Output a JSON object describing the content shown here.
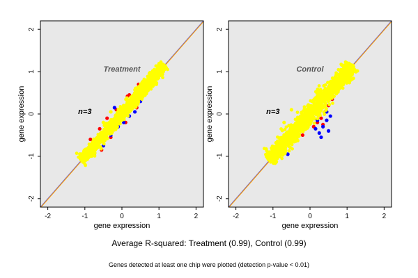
{
  "figure": {
    "caption": "Average R-squared: Treatment (0.99), Control (0.99)",
    "note": "Genes detected at least one chip were plotted (detection p-value < 0.01)"
  },
  "colors": {
    "background": "#e8e8e8",
    "points_primary": "#ffff00",
    "points_red": "#ff0000",
    "points_blue": "#0000ff",
    "identity_line": "#ffa500",
    "identity_line_2": "#6a5acd"
  },
  "chart_data": [
    {
      "type": "scatter",
      "title": "Treatment",
      "annotation": "n=3",
      "xlabel": "gene expression",
      "ylabel": "gene expression",
      "xlim": [
        -2.2,
        2.2
      ],
      "ylim": [
        -2.2,
        2.2
      ],
      "xticks": [
        "-2",
        "-1",
        "0",
        "1",
        "2"
      ],
      "yticks": [
        "-2",
        "-1",
        "0",
        "1",
        "2"
      ],
      "grid": false,
      "reference_line": "y = x",
      "point_cloud": {
        "x_range": [
          -1.1,
          1.15
        ],
        "spread": 0.06,
        "r_squared": 0.99
      },
      "series": [
        {
          "color": "yellow",
          "values": [
            [
              -1.05,
              -1.1
            ],
            [
              -0.9,
              -0.95
            ],
            [
              -0.7,
              -0.65
            ],
            [
              -0.5,
              -0.5
            ],
            [
              -0.3,
              -0.32
            ],
            [
              -0.1,
              -0.05
            ],
            [
              0.1,
              0.12
            ],
            [
              0.3,
              0.28
            ],
            [
              0.5,
              0.5
            ],
            [
              0.7,
              0.72
            ],
            [
              0.9,
              0.88
            ],
            [
              1.1,
              1.12
            ],
            [
              -0.3,
              0.05
            ],
            [
              -0.5,
              -0.2
            ],
            [
              0.2,
              0.1
            ]
          ]
        },
        {
          "color": "red",
          "values": [
            [
              -0.85,
              -0.6
            ],
            [
              -0.6,
              -0.35
            ],
            [
              -0.4,
              -0.1
            ],
            [
              -0.15,
              0.1
            ],
            [
              0.15,
              0.42
            ],
            [
              0.45,
              0.7
            ],
            [
              -0.3,
              -0.55
            ],
            [
              0.1,
              -0.2
            ],
            [
              0.4,
              0.15
            ],
            [
              -0.55,
              -0.85
            ],
            [
              0.2,
              0.45
            ],
            [
              0.6,
              0.5
            ]
          ]
        },
        {
          "color": "blue",
          "values": [
            [
              -0.3,
              -0.5
            ],
            [
              -0.1,
              -0.3
            ],
            [
              0.2,
              -0.05
            ],
            [
              0.35,
              0.05
            ],
            [
              -0.5,
              -0.75
            ],
            [
              -0.75,
              -0.95
            ],
            [
              0.5,
              0.3
            ],
            [
              -0.2,
              0.15
            ],
            [
              0.05,
              -0.2
            ]
          ]
        }
      ]
    },
    {
      "type": "scatter",
      "title": "Control",
      "annotation": "n=3",
      "xlabel": "gene expression",
      "ylabel": "gene expression",
      "xlim": [
        -2.2,
        2.2
      ],
      "ylim": [
        -2.2,
        2.2
      ],
      "xticks": [
        "-2",
        "-1",
        "0",
        "1",
        "2"
      ],
      "yticks": [
        "-2",
        "-1",
        "0",
        "1",
        "2"
      ],
      "grid": false,
      "reference_line": "y = x",
      "point_cloud": {
        "x_range": [
          -1.1,
          1.15
        ],
        "spread": 0.09,
        "r_squared": 0.99
      },
      "series": [
        {
          "color": "yellow",
          "values": [
            [
              -1.05,
              -1.05
            ],
            [
              -0.8,
              -0.75
            ],
            [
              -0.6,
              -0.55
            ],
            [
              -0.4,
              -0.38
            ],
            [
              -0.2,
              -0.2
            ],
            [
              0.0,
              0.02
            ],
            [
              0.2,
              0.22
            ],
            [
              0.4,
              0.42
            ],
            [
              0.6,
              0.6
            ],
            [
              0.8,
              0.82
            ],
            [
              1.0,
              1.0
            ],
            [
              1.15,
              1.15
            ],
            [
              -0.5,
              0.1
            ],
            [
              -0.7,
              -0.2
            ],
            [
              0.3,
              0.5
            ]
          ]
        },
        {
          "color": "red",
          "values": [
            [
              0.2,
              -0.2
            ],
            [
              0.3,
              -0.1
            ],
            [
              0.1,
              -0.3
            ],
            [
              0.4,
              0.05
            ],
            [
              -0.2,
              -0.5
            ],
            [
              0.5,
              0.2
            ],
            [
              0.35,
              -0.25
            ],
            [
              0.6,
              0.35
            ],
            [
              0.0,
              -0.15
            ]
          ]
        },
        {
          "color": "blue",
          "values": [
            [
              0.25,
              -0.45
            ],
            [
              0.35,
              -0.3
            ],
            [
              0.45,
              -0.15
            ],
            [
              0.5,
              -0.4
            ],
            [
              0.3,
              -0.55
            ],
            [
              0.15,
              -0.35
            ],
            [
              0.55,
              -0.05
            ],
            [
              0.45,
              0.05
            ],
            [
              -0.6,
              -0.95
            ],
            [
              -0.9,
              -1.0
            ],
            [
              0.6,
              0.5
            ],
            [
              0.2,
              -0.15
            ]
          ]
        }
      ]
    }
  ]
}
